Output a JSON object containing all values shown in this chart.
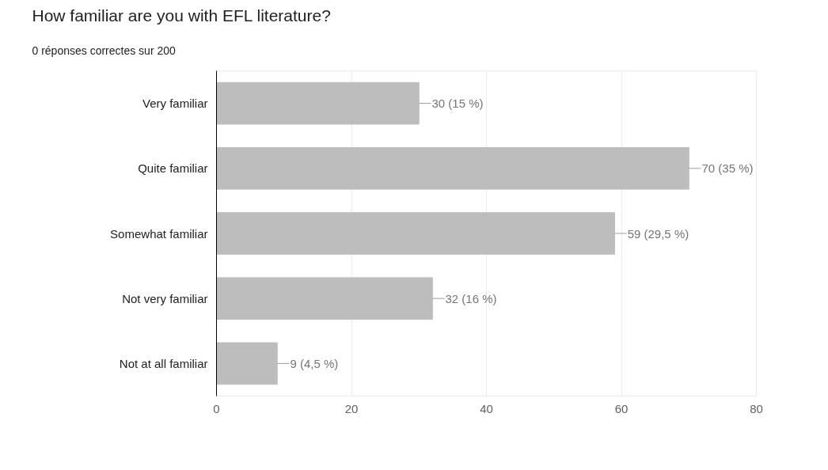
{
  "chart_data": {
    "type": "bar",
    "orientation": "horizontal",
    "title": "How familiar are you with EFL literature?",
    "subtitle": "0 réponses correctes sur 200",
    "categories": [
      "Very familiar",
      "Quite familiar",
      "Somewhat familiar",
      "Not very familiar",
      "Not at all familiar"
    ],
    "values": [
      30,
      70,
      59,
      32,
      9
    ],
    "value_labels": [
      "30 (15 %)",
      "70 (35 %)",
      "59 (29,5 %)",
      "32 (16 %)",
      "9 (4,5 %)"
    ],
    "color": "#bdbdbd",
    "xlim": [
      0,
      80
    ],
    "xticks": [
      0,
      20,
      40,
      60,
      80
    ],
    "grid": "x"
  }
}
